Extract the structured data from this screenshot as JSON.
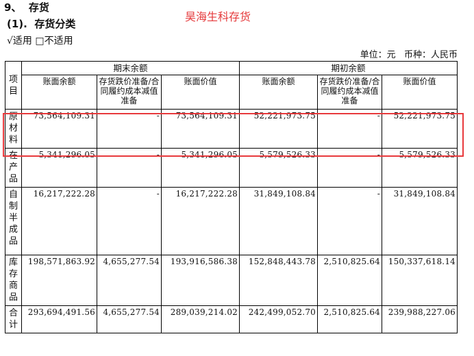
{
  "heading": {
    "num": "9、",
    "title": "存货"
  },
  "subheading": {
    "num": "(1).",
    "title": "存货分类"
  },
  "applicability": {
    "applicable": "√适用",
    "not_applicable": "□不适用"
  },
  "stamp": "昊海生科存货",
  "unit_line": {
    "unit": "单位：元",
    "currency": "币种：人民币"
  },
  "table": {
    "item_header": "项目",
    "groups": [
      "期末余额",
      "期初余额"
    ],
    "columns": [
      "账面余额",
      "存货跌价准备/合同履约成本减值准备",
      "账面价值",
      "账面余额",
      "存货跌价准备/合同履约成本减值准备",
      "账面价值"
    ],
    "rows": [
      {
        "item": "原材料",
        "values": [
          "73,564,109.31",
          "-",
          "73,564,109.31",
          "52,221,973.75",
          "-",
          "52,221,973.75"
        ]
      },
      {
        "item": "在产品",
        "values": [
          "5,341,296.05",
          "-",
          "5,341,296.05",
          "5,579,526.33",
          "-",
          "5,579,526.33"
        ]
      },
      {
        "item": "自制半成品",
        "values": [
          "16,217,222.28",
          "-",
          "16,217,222.28",
          "31,849,108.84",
          "-",
          "31,849,108.84"
        ]
      },
      {
        "item": "库存商品",
        "values": [
          "198,571,863.92",
          "4,655,277.54",
          "193,916,586.38",
          "152,848,443.78",
          "2,510,825.64",
          "150,337,618.14"
        ]
      },
      {
        "item": "合计",
        "values": [
          "293,694,491.56",
          "4,655,277.54",
          "289,039,214.02",
          "242,499,052.70",
          "2,510,825.64",
          "239,988,227.06"
        ]
      }
    ]
  }
}
